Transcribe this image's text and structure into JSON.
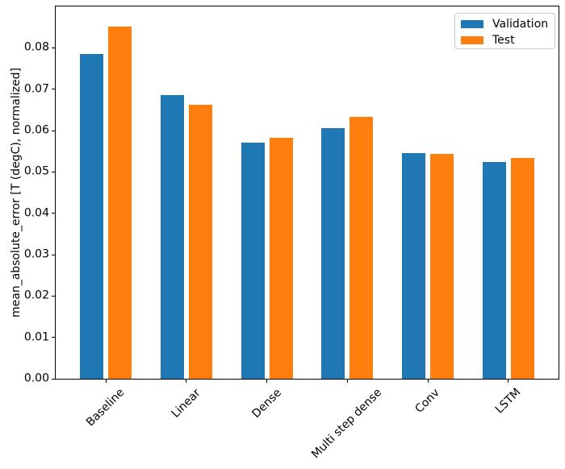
{
  "chart_data": {
    "type": "bar",
    "title": "",
    "xlabel": "",
    "ylabel": "mean_absolute_error [T (degC), normalized]",
    "categories": [
      "Baseline",
      "Linear",
      "Dense",
      "Multi step dense",
      "Conv",
      "LSTM"
    ],
    "series": [
      {
        "name": "Validation",
        "color": "#1f77b4",
        "values": [
          0.0785,
          0.0686,
          0.0571,
          0.0606,
          0.0545,
          0.0524
        ]
      },
      {
        "name": "Test",
        "color": "#ff7f0e",
        "values": [
          0.0852,
          0.0663,
          0.0583,
          0.0634,
          0.0543,
          0.0533
        ]
      }
    ],
    "ylim": [
      0,
      0.09
    ],
    "yticks": [
      "0.00",
      "0.01",
      "0.02",
      "0.03",
      "0.04",
      "0.05",
      "0.06",
      "0.07",
      "0.08"
    ],
    "xtick_rotation_deg": 45,
    "legend_position": "upper right",
    "grid": false
  }
}
